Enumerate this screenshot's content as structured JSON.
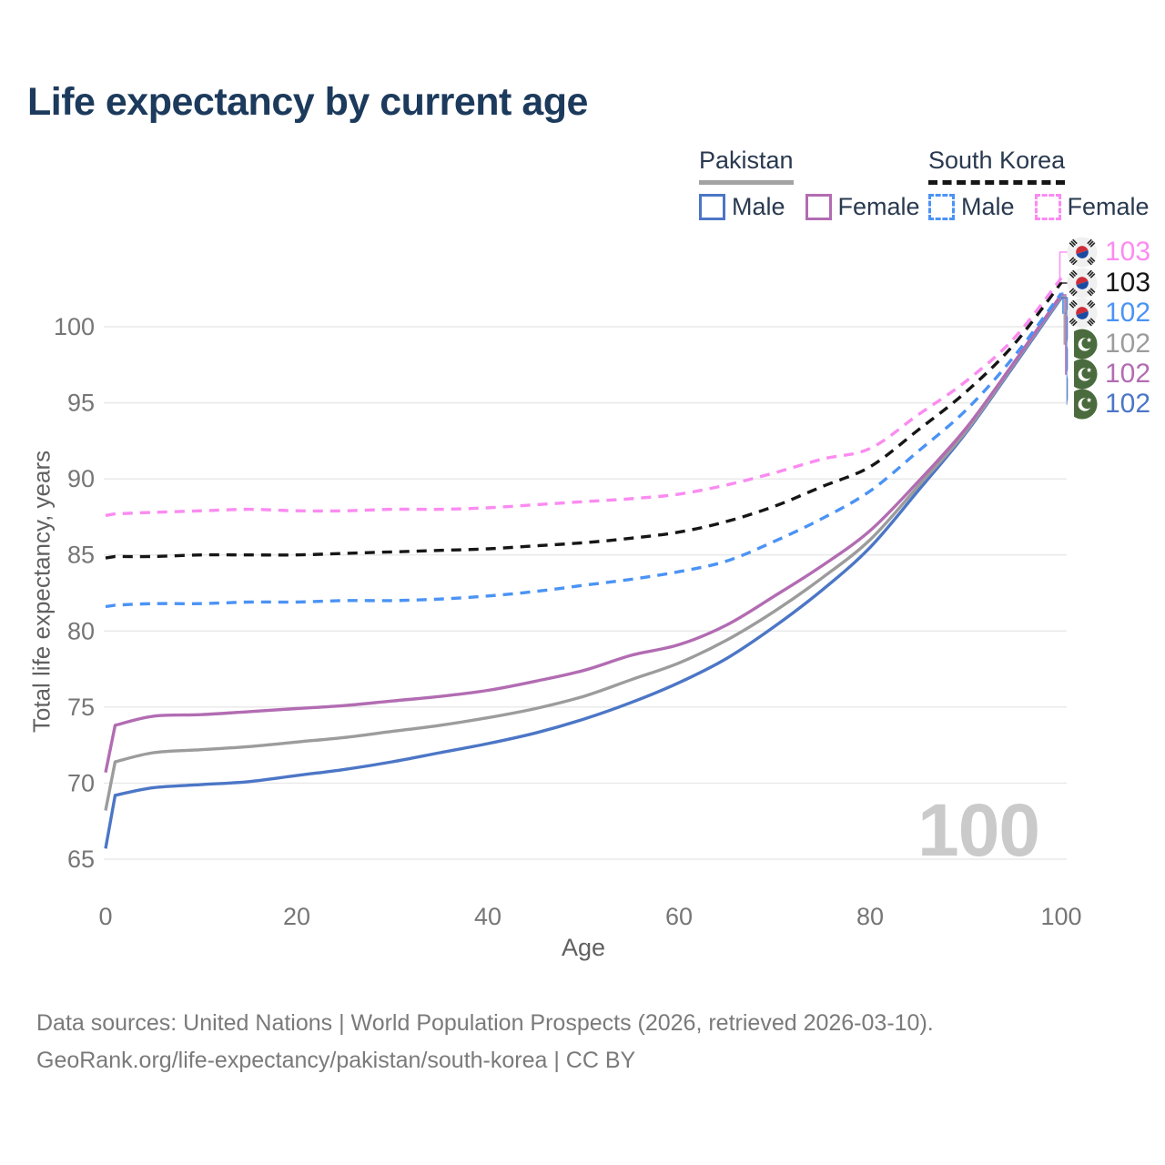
{
  "title": "Life expectancy by current age",
  "legend": {
    "groups": [
      {
        "label": "Pakistan",
        "line_style": "solid",
        "underline_color": "#a3a3a3",
        "items": [
          {
            "label": "Male",
            "color": "#4c76c6"
          },
          {
            "label": "Female",
            "color": "#b26cb2"
          }
        ]
      },
      {
        "label": "South Korea",
        "line_style": "dashed",
        "underline_color": "#161616",
        "items": [
          {
            "label": "Male",
            "color": "#4b93f5"
          },
          {
            "label": "Female",
            "color": "#fb8bf1"
          }
        ]
      }
    ]
  },
  "watermark": "100",
  "footer": {
    "line1": "Data sources: United Nations | World Population Prospects (2026, retrieved 2026-03-10).",
    "line2": "GeoRank.org/life-expectancy/pakistan/south-korea | CC BY"
  },
  "chart_data": {
    "type": "line",
    "title": "Life expectancy by current age",
    "xlabel": "Age",
    "ylabel": "Total life expectancy, years",
    "xlim": [
      0,
      100
    ],
    "ylim": [
      65,
      104
    ],
    "xticks": [
      0,
      20,
      40,
      60,
      80,
      100
    ],
    "yticks": [
      65,
      70,
      75,
      80,
      85,
      90,
      95,
      100
    ],
    "grid": "horizontal",
    "legend_position": "top-right",
    "x": [
      0,
      1,
      5,
      10,
      15,
      20,
      25,
      30,
      35,
      40,
      45,
      50,
      55,
      60,
      65,
      70,
      75,
      80,
      85,
      90,
      95,
      100
    ],
    "series": [
      {
        "name": "Pakistan Male",
        "country": "Pakistan",
        "sex": "Male",
        "color": "#4c76c6",
        "dash": false,
        "values": [
          65.7,
          69.2,
          69.7,
          69.9,
          70.1,
          70.5,
          70.9,
          71.4,
          72.0,
          72.6,
          73.3,
          74.2,
          75.3,
          76.6,
          78.2,
          80.3,
          82.7,
          85.5,
          89.2,
          93.0,
          97.4,
          101.9
        ]
      },
      {
        "name": "Pakistan Total",
        "country": "Pakistan",
        "sex": "Both",
        "color": "#9c9c9c",
        "dash": false,
        "values": [
          68.2,
          71.4,
          72.0,
          72.2,
          72.4,
          72.7,
          73.0,
          73.4,
          73.8,
          74.3,
          74.9,
          75.7,
          76.8,
          77.9,
          79.4,
          81.3,
          83.5,
          86.0,
          89.5,
          93.1,
          97.5,
          102.0
        ]
      },
      {
        "name": "Pakistan Female",
        "country": "Pakistan",
        "sex": "Female",
        "color": "#b26cb2",
        "dash": false,
        "values": [
          70.7,
          73.8,
          74.4,
          74.5,
          74.7,
          74.9,
          75.1,
          75.4,
          75.7,
          76.1,
          76.7,
          77.4,
          78.4,
          79.1,
          80.4,
          82.3,
          84.3,
          86.6,
          89.8,
          93.3,
          97.6,
          102.1
        ]
      },
      {
        "name": "South Korea Male",
        "country": "South Korea",
        "sex": "Male",
        "color": "#4b93f5",
        "dash": true,
        "values": [
          81.6,
          81.7,
          81.8,
          81.8,
          81.9,
          81.9,
          82.0,
          82.0,
          82.1,
          82.3,
          82.6,
          83.0,
          83.4,
          83.9,
          84.6,
          85.9,
          87.4,
          89.2,
          91.8,
          94.5,
          98.0,
          102.2
        ]
      },
      {
        "name": "South Korea Total",
        "country": "South Korea",
        "sex": "Both",
        "color": "#161616",
        "dash": true,
        "values": [
          84.8,
          84.9,
          84.9,
          85.0,
          85.0,
          85.0,
          85.1,
          85.2,
          85.3,
          85.4,
          85.6,
          85.8,
          86.1,
          86.5,
          87.2,
          88.2,
          89.5,
          90.8,
          93.2,
          95.7,
          98.8,
          102.9
        ]
      },
      {
        "name": "South Korea Female",
        "country": "South Korea",
        "sex": "Female",
        "color": "#fb8bf1",
        "dash": true,
        "values": [
          87.6,
          87.7,
          87.8,
          87.9,
          88.0,
          87.9,
          87.9,
          88.0,
          88.0,
          88.1,
          88.3,
          88.5,
          88.7,
          89.0,
          89.6,
          90.4,
          91.3,
          92.0,
          94.2,
          96.4,
          99.2,
          103.2
        ]
      }
    ],
    "end_labels": [
      {
        "flag": "kr",
        "value": "103",
        "color": "#fb8bf1",
        "series": "South Korea Female"
      },
      {
        "flag": "kr",
        "value": "103",
        "color": "#161616",
        "series": "South Korea Total"
      },
      {
        "flag": "kr",
        "value": "102",
        "color": "#4b93f5",
        "series": "South Korea Male"
      },
      {
        "flag": "pk",
        "value": "102",
        "color": "#9c9c9c",
        "series": "Pakistan Total"
      },
      {
        "flag": "pk",
        "value": "102",
        "color": "#b26cb2",
        "series": "Pakistan Female"
      },
      {
        "flag": "pk",
        "value": "102",
        "color": "#4c76c6",
        "series": "Pakistan Male"
      }
    ]
  }
}
